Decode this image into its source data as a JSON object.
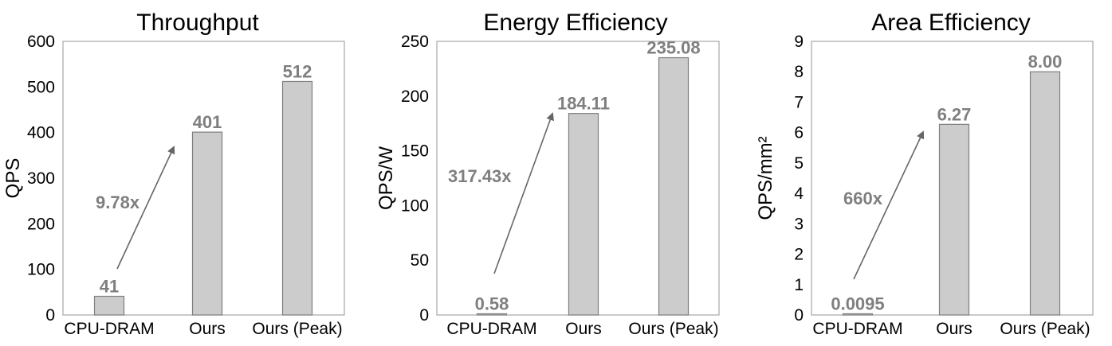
{
  "chart_data": [
    {
      "type": "bar",
      "title": "Throughput",
      "ylabel": "QPS",
      "ylim": [
        0,
        600
      ],
      "yticks": [
        0,
        100,
        200,
        300,
        400,
        500,
        600
      ],
      "categories": [
        "CPU-DRAM",
        "Ours",
        "Ours (Peak)"
      ],
      "values": [
        41,
        401,
        512
      ],
      "value_labels": [
        "41",
        "401",
        "512"
      ],
      "annotation": "9.78x"
    },
    {
      "type": "bar",
      "title": "Energy Efficiency",
      "ylabel": "QPS/W",
      "ylim": [
        0,
        250
      ],
      "yticks": [
        0,
        50,
        100,
        150,
        200,
        250
      ],
      "categories": [
        "CPU-DRAM",
        "Ours",
        "Ours (Peak)"
      ],
      "values": [
        0.58,
        184.11,
        235.08
      ],
      "value_labels": [
        "0.58",
        "184.11",
        "235.08"
      ],
      "annotation": "317.43x"
    },
    {
      "type": "bar",
      "title": "Area Efficiency",
      "ylabel": "QPS/mm²",
      "ylim": [
        0,
        9
      ],
      "yticks": [
        0,
        1,
        2,
        3,
        4,
        5,
        6,
        7,
        8,
        9
      ],
      "categories": [
        "CPU-DRAM",
        "Ours",
        "Ours (Peak)"
      ],
      "values": [
        0.0095,
        6.27,
        8.0
      ],
      "value_labels": [
        "0.0095",
        "6.27",
        "8.00"
      ],
      "annotation": "660x"
    }
  ],
  "colors": {
    "bar_fill": "#cccccc",
    "bar_stroke": "#7f7f7f",
    "label": "#7f7f7f",
    "arrow": "#666666"
  }
}
